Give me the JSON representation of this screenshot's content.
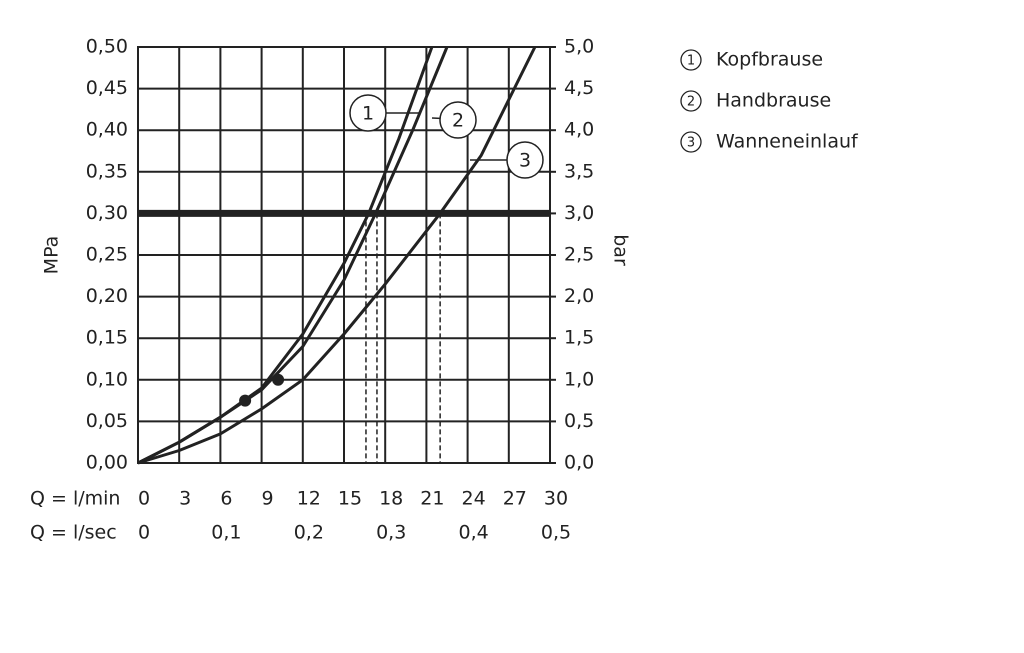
{
  "chart_data": {
    "type": "line",
    "xlabel": "Q = l/min",
    "x2label": "Q = l/sec",
    "ylabel": "MPa",
    "y2label": "bar",
    "xlim": [
      0,
      30
    ],
    "xticks": [
      0,
      3,
      6,
      9,
      12,
      15,
      18,
      21,
      24,
      27,
      30
    ],
    "x2lim": [
      0,
      0.5
    ],
    "x2ticks": [
      0,
      {
        "value": 0.1,
        "label": "0,1"
      },
      {
        "value": 0.2,
        "label": "0,2"
      },
      {
        "value": 0.3,
        "label": "0,3"
      },
      {
        "value": 0.4,
        "label": "0,4"
      },
      {
        "value": 0.5,
        "label": "0,5"
      }
    ],
    "ylim": [
      0,
      0.5
    ],
    "yticks": [
      {
        "value": 0,
        "label": "0,00"
      },
      {
        "value": 0.05,
        "label": "0,05"
      },
      {
        "value": 0.1,
        "label": "0,10"
      },
      {
        "value": 0.15,
        "label": "0,15"
      },
      {
        "value": 0.2,
        "label": "0,20"
      },
      {
        "value": 0.25,
        "label": "0,25"
      },
      {
        "value": 0.3,
        "label": "0,30"
      },
      {
        "value": 0.35,
        "label": "0,35"
      },
      {
        "value": 0.4,
        "label": "0,40"
      },
      {
        "value": 0.45,
        "label": "0,45"
      },
      {
        "value": 0.5,
        "label": "0,50"
      }
    ],
    "y2lim": [
      0,
      5
    ],
    "y2ticks": [
      {
        "value": 0,
        "label": "0,0"
      },
      {
        "value": 0.5,
        "label": "0,5"
      },
      {
        "value": 1,
        "label": "1,0"
      },
      {
        "value": 1.5,
        "label": "1,5"
      },
      {
        "value": 2,
        "label": "2,0"
      },
      {
        "value": 2.5,
        "label": "2,5"
      },
      {
        "value": 3,
        "label": "3,0"
      },
      {
        "value": 3.5,
        "label": "3,5"
      },
      {
        "value": 4,
        "label": "4,0"
      },
      {
        "value": 4.5,
        "label": "4,5"
      },
      {
        "value": 5,
        "label": "5,0"
      }
    ],
    "grid": true,
    "reference_y": 0.3,
    "series": [
      {
        "name": "Kopfbrause",
        "number": "1",
        "color": "#222222",
        "x": [
          0,
          3,
          6,
          9,
          12,
          15,
          16.8,
          19,
          21.4
        ],
        "values": [
          0,
          0.025,
          0.055,
          0.09,
          0.155,
          0.24,
          0.3,
          0.39,
          0.5
        ],
        "crossing_x": 16.6
      },
      {
        "name": "Handbrause",
        "number": "2",
        "color": "#222222",
        "x": [
          0,
          3,
          6,
          9,
          12,
          15,
          17.3,
          20,
          22.5
        ],
        "values": [
          0,
          0.025,
          0.055,
          0.088,
          0.14,
          0.22,
          0.3,
          0.4,
          0.5
        ],
        "crossing_x": 17.4
      },
      {
        "name": "Wanneneinlauf",
        "number": "3",
        "color": "#222222",
        "x": [
          0,
          3,
          6,
          9,
          12,
          15,
          18,
          22,
          25,
          28.9
        ],
        "values": [
          0,
          0.015,
          0.035,
          0.065,
          0.1,
          0.155,
          0.215,
          0.3,
          0.37,
          0.5
        ],
        "crossing_x": 22
      }
    ],
    "markers": {
      "x": [
        7.8,
        10.2
      ],
      "values": [
        0.075,
        0.1
      ]
    }
  }
}
